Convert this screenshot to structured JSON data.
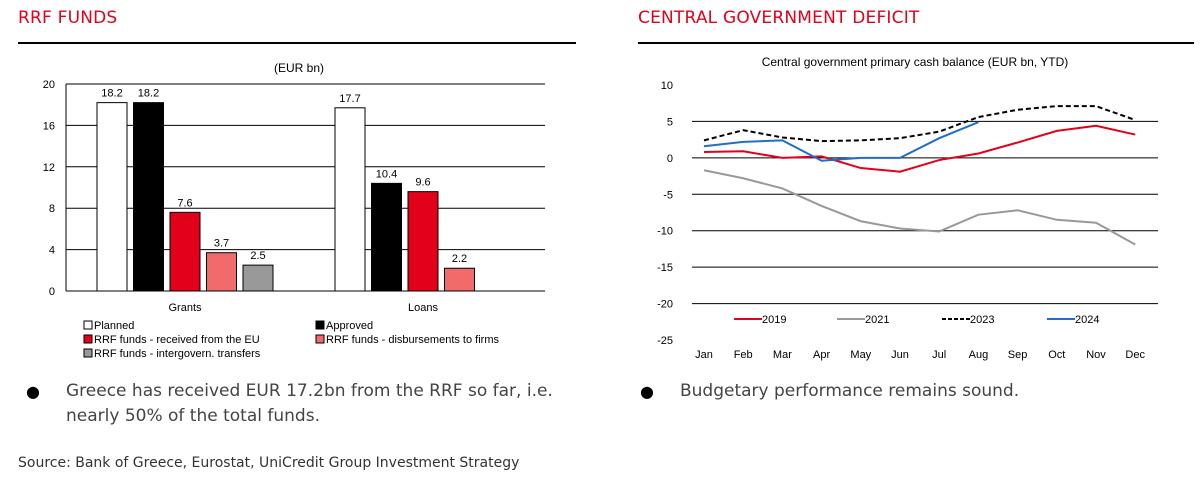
{
  "left_section": {
    "title": "RRF FUNDS"
  },
  "right_section": {
    "title": "CENTRAL GOVERNMENT DEFICIT"
  },
  "bullets": {
    "left": "Greece has received EUR 17.2bn from the RRF so far, i.e. nearly 50% of the total funds.",
    "right": "Budgetary performance remains sound."
  },
  "source": "Source: Bank of Greece, Eurostat, UniCredit Group Investment Strategy",
  "chart_data": [
    {
      "type": "bar",
      "title": "(EUR bn)",
      "categories": [
        "Grants",
        "Loans"
      ],
      "yticks": [
        "0",
        "4",
        "8",
        "12",
        "16",
        "20"
      ],
      "ylim": [
        0,
        20
      ],
      "grid": true,
      "legend_position": "bottom",
      "series": [
        {
          "name": "Planned",
          "values": [
            18.2,
            17.7
          ],
          "labels": [
            "18.2",
            "17.7"
          ],
          "color": "#ffffff"
        },
        {
          "name": "Approved",
          "values": [
            18.2,
            10.4
          ],
          "labels": [
            "18.2",
            "10.4"
          ],
          "color": "#000000"
        },
        {
          "name": "RRF funds - received from the EU",
          "values": [
            7.6,
            9.6
          ],
          "labels": [
            "7.6",
            "9.6"
          ],
          "color": "#e2001a"
        },
        {
          "name": "RRF funds - disbursements to firms",
          "values": [
            3.7,
            2.2
          ],
          "labels": [
            "3.7",
            "2.2"
          ],
          "color": "#f26b6b"
        },
        {
          "name": "RRF funds - intergovern. transfers",
          "values": [
            2.5,
            null
          ],
          "labels": [
            "2.5",
            ""
          ],
          "color": "#999999"
        }
      ]
    },
    {
      "type": "line",
      "title": "Central government primary cash balance (EUR bn, YTD)",
      "x": [
        "Jan",
        "Feb",
        "Mar",
        "Apr",
        "May",
        "Jun",
        "Jul",
        "Aug",
        "Sep",
        "Oct",
        "Nov",
        "Dec"
      ],
      "yticks": [
        "10",
        "5",
        "0",
        "-5",
        "-10",
        "-15",
        "-20",
        "-25"
      ],
      "ylim": [
        -25,
        10
      ],
      "grid": true,
      "legend_position": "bottom",
      "series": [
        {
          "name": "2019",
          "color": "#e2001a",
          "dash": "solid",
          "values": [
            0.8,
            0.9,
            0.0,
            0.2,
            -1.4,
            -1.9,
            -0.3,
            0.6,
            2.1,
            3.7,
            4.4,
            3.2
          ]
        },
        {
          "name": "2021",
          "color": "#999999",
          "dash": "solid",
          "values": [
            -1.7,
            -2.8,
            -4.2,
            -6.6,
            -8.7,
            -9.7,
            -10.1,
            -7.8,
            -7.2,
            -8.5,
            -8.9,
            -11.9
          ]
        },
        {
          "name": "2023",
          "color": "#000000",
          "dash": "dashed",
          "values": [
            2.4,
            3.8,
            2.8,
            2.3,
            2.4,
            2.7,
            3.6,
            5.6,
            6.6,
            7.1,
            7.1,
            5.2
          ]
        },
        {
          "name": "2024",
          "color": "#1e6fc8",
          "dash": "solid",
          "values": [
            1.6,
            2.2,
            2.4,
            -0.4,
            0.0,
            0.0,
            2.7,
            4.9,
            null,
            null,
            null,
            null
          ]
        }
      ]
    }
  ]
}
